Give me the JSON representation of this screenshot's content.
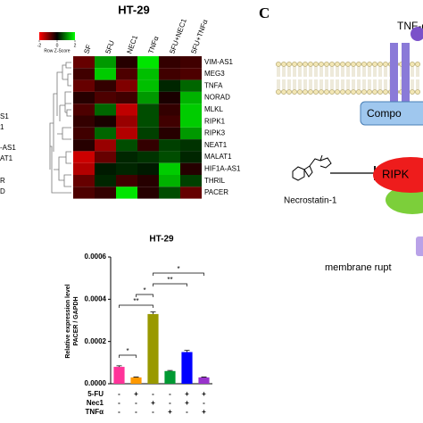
{
  "chart_data": [
    {
      "type": "heatmap",
      "title": "HT-29",
      "columns": [
        "SF",
        "5FU",
        "NEC1",
        "TNFα",
        "5FU+NEC1",
        "5FU+TNFα"
      ],
      "rows": [
        "VIM-AS1",
        "MEG3",
        "TNFA",
        "NORAD",
        "MLKL",
        "RIPK1",
        "RIPK3",
        "NEAT1",
        "MALAT1",
        "HIF1A-AS1",
        "THRIL",
        "PACER"
      ],
      "values": [
        [
          -0.8,
          1.2,
          -0.3,
          1.8,
          -0.4,
          -0.5
        ],
        [
          -0.5,
          1.6,
          -0.6,
          1.5,
          -0.5,
          -0.6
        ],
        [
          -0.8,
          -0.4,
          -1.0,
          1.5,
          0.3,
          0.8
        ],
        [
          -0.3,
          -0.6,
          -0.5,
          1.2,
          -0.2,
          1.4
        ],
        [
          -0.6,
          0.8,
          -1.5,
          0.6,
          -0.4,
          1.6
        ],
        [
          -0.4,
          -0.2,
          -1.2,
          0.6,
          -0.5,
          1.6
        ],
        [
          -0.5,
          0.8,
          -1.4,
          0.5,
          -0.3,
          1.2
        ],
        [
          -0.3,
          -1.2,
          0.6,
          -0.4,
          0.5,
          0.4
        ],
        [
          -1.6,
          -0.8,
          0.3,
          0.4,
          0.6,
          0.3
        ],
        [
          -1.4,
          0.2,
          0.3,
          0.2,
          1.6,
          -0.3
        ],
        [
          -0.8,
          0.3,
          -0.5,
          -0.3,
          1.4,
          0.5
        ],
        [
          -0.6,
          -0.4,
          1.8,
          -0.3,
          0.6,
          -0.8
        ]
      ],
      "zlim": [
        -2,
        2
      ],
      "zticks": [
        -2,
        0,
        2
      ],
      "colorbar_label": "Row Z-Score",
      "low_color": "#ff0000",
      "mid_color": "#000000",
      "high_color": "#00ff00"
    },
    {
      "type": "bar",
      "title": "HT-29",
      "ylabel": "Relative expression level\nPACER / GAPDH",
      "categories": [
        null,
        null,
        null,
        null,
        null,
        null
      ],
      "values": [
        8e-05,
        3e-05,
        0.00033,
        6e-05,
        0.00015,
        3e-05
      ],
      "errors": [
        5e-06,
        2e-06,
        1e-05,
        3e-06,
        8e-06,
        2e-06
      ],
      "colors": [
        "#ff3399",
        "#ff9900",
        "#999900",
        "#009933",
        "#0000ff",
        "#9933cc"
      ],
      "ylim": [
        0,
        0.0006
      ],
      "yticks": [
        {
          "value": 0,
          "label": "0.0000"
        },
        0.0002,
        0.0004,
        0.0006
      ],
      "significance": [
        {
          "from": 0,
          "to": 1,
          "label": "*"
        },
        {
          "from": 0,
          "to": 2,
          "label": "**"
        },
        {
          "from": 1,
          "to": 2,
          "label": "*"
        },
        {
          "from": 2,
          "to": 4,
          "label": "**"
        },
        {
          "from": 2,
          "to": 5,
          "label": "*"
        }
      ],
      "treatments": [
        {
          "label": "5-FU",
          "signs": [
            "-",
            "+",
            "-",
            "-",
            "+",
            "+"
          ]
        },
        {
          "label": "Nec1",
          "signs": [
            "-",
            "-",
            "+",
            "-",
            "+",
            "-"
          ]
        },
        {
          "label": "TNFα",
          "signs": [
            "-",
            "-",
            "-",
            "+",
            "-",
            "+"
          ]
        }
      ]
    }
  ],
  "left_fragment": {
    "labels": [
      "S1",
      "1",
      "-AS1",
      "AT1",
      "R",
      "D"
    ]
  },
  "diagram": {
    "panel": "C",
    "ligand": "TNF-α",
    "complex": "Compo",
    "inhibitor": "Necrostatin-1",
    "kinase": "RIPK",
    "outcome": "membrane rupt"
  }
}
